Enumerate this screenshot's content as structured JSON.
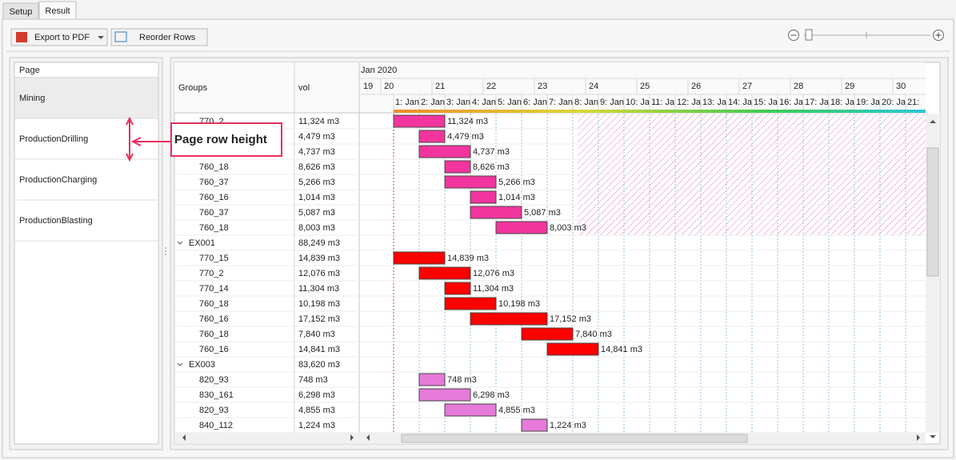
{
  "tabs": [
    "Setup",
    "Result"
  ],
  "toolbar": {
    "export": "Export to PDF",
    "reorder": "Reorder Rows"
  },
  "pages": {
    "header": "Page",
    "items": [
      "Mining",
      "ProductionDrilling",
      "ProductionCharging",
      "ProductionBlasting"
    ]
  },
  "annotation": "Page row height",
  "grid": {
    "columns": [
      "Groups",
      "vol"
    ],
    "month": "Jan 2020",
    "xlim": [
      19.59375,
      30.640625
    ],
    "days": [
      19,
      20,
      21,
      22,
      23,
      24,
      25,
      26,
      27,
      28,
      29,
      30
    ],
    "shifts": [
      {
        "value": 20.25,
        "label": "1: Jan"
      },
      {
        "value": 20.75,
        "label": "2: Jan"
      },
      {
        "value": 21.25,
        "label": "3: Jan"
      },
      {
        "value": 21.75,
        "label": "4: Jan"
      },
      {
        "value": 22.25,
        "label": "5: Jan"
      },
      {
        "value": 22.75,
        "label": "6: Jan"
      },
      {
        "value": 23.25,
        "label": "7: Jan"
      },
      {
        "value": 23.75,
        "label": "8: Jan"
      },
      {
        "value": 24.25,
        "label": "9: Jan"
      },
      {
        "value": 24.75,
        "label": "10: Ja"
      },
      {
        "value": 25.25,
        "label": "11: Ja"
      },
      {
        "value": 25.75,
        "label": "12: Ja"
      },
      {
        "value": 26.25,
        "label": "13: Ja"
      },
      {
        "value": 26.75,
        "label": "14: Ja"
      },
      {
        "value": 27.25,
        "label": "15: Ja"
      },
      {
        "value": 27.75,
        "label": "16: Ja"
      },
      {
        "value": 28.25,
        "label": "17: Ja"
      },
      {
        "value": 28.75,
        "label": "18: Ja"
      },
      {
        "value": 29.25,
        "label": "19: Ja"
      },
      {
        "value": 29.75,
        "label": "20: Ja"
      },
      {
        "value": 30.25,
        "label": "21:"
      }
    ],
    "rows": [
      {
        "name": "770_2",
        "vol": "11,324 m3",
        "start": 20.25,
        "end": 21.25,
        "color": "#f2359e"
      },
      {
        "name": null,
        "vol": "4,479 m3",
        "start": 20.75,
        "end": 21.25,
        "color": "#f2359e"
      },
      {
        "name": null,
        "vol": "4,737 m3",
        "start": 20.75,
        "end": 21.75,
        "color": "#f2359e"
      },
      {
        "name": "760_18",
        "vol": "8,626 m3",
        "start": 21.25,
        "end": 21.75,
        "color": "#f2359e"
      },
      {
        "name": "760_37",
        "vol": "5,266 m3",
        "start": 21.25,
        "end": 22.25,
        "color": "#f2359e"
      },
      {
        "name": "760_16",
        "vol": "1,014 m3",
        "start": 21.75,
        "end": 22.25,
        "color": "#f2359e"
      },
      {
        "name": "760_37",
        "vol": "5,087 m3",
        "start": 21.75,
        "end": 22.75,
        "color": "#f2359e"
      },
      {
        "name": "760_18",
        "vol": "8,003 m3",
        "start": 22.25,
        "end": 23.25,
        "color": "#f2359e"
      },
      {
        "group": "EX001",
        "vol": "88,249 m3"
      },
      {
        "name": "770_15",
        "vol": "14,839 m3",
        "start": 20.25,
        "end": 21.25,
        "color": "#ff0000"
      },
      {
        "name": "770_2",
        "vol": "12,076 m3",
        "start": 20.75,
        "end": 21.75,
        "color": "#ff0000"
      },
      {
        "name": "770_14",
        "vol": "11,304 m3",
        "start": 21.25,
        "end": 21.75,
        "color": "#ff0000"
      },
      {
        "name": "760_18",
        "vol": "10,198 m3",
        "start": 21.25,
        "end": 22.25,
        "color": "#ff0000"
      },
      {
        "name": "760_16",
        "vol": "17,152 m3",
        "start": 21.75,
        "end": 23.25,
        "color": "#ff0000"
      },
      {
        "name": "760_18",
        "vol": "7,840 m3",
        "start": 22.75,
        "end": 23.75,
        "color": "#ff0000"
      },
      {
        "name": "760_16",
        "vol": "14,841 m3",
        "start": 23.25,
        "end": 24.25,
        "color": "#ff0000"
      },
      {
        "group": "EX003",
        "vol": "83,620 m3"
      },
      {
        "name": "820_93",
        "vol": "748 m3",
        "start": 20.75,
        "end": 21.25,
        "color": "#e67ad9"
      },
      {
        "name": "830_161",
        "vol": "6,298 m3",
        "start": 20.75,
        "end": 21.75,
        "color": "#e67ad9"
      },
      {
        "name": "820_93",
        "vol": "4,855 m3",
        "start": 21.25,
        "end": 22.25,
        "color": "#e67ad9"
      },
      {
        "name": "840_112",
        "vol": "1,224 m3",
        "start": 22.75,
        "end": 23.25,
        "color": "#e67ad9"
      }
    ]
  }
}
